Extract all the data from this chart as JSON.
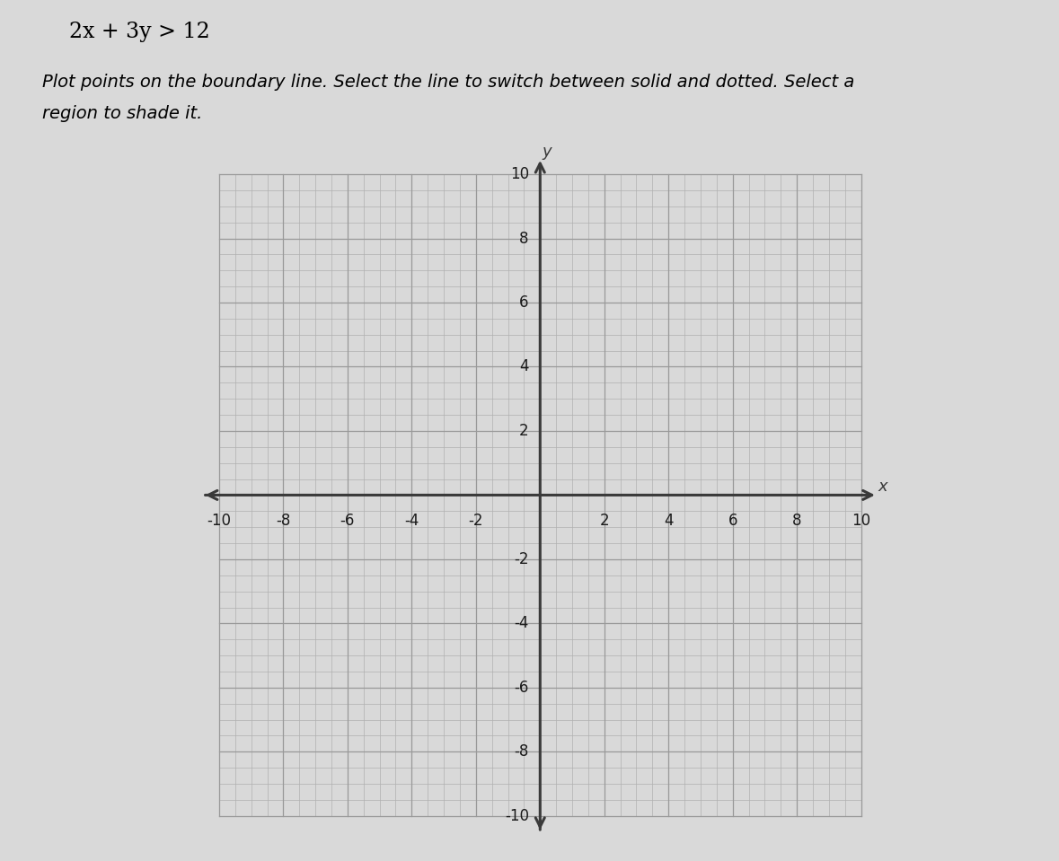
{
  "title": "2x + 3y > 12",
  "instruction_line1": "Plot points on the boundary line. Select the line to switch between solid and dotted. Select a",
  "instruction_line2": "region to shade it.",
  "xmin": -10,
  "xmax": 10,
  "ymin": -10,
  "ymax": 10,
  "major_tick_interval": 2,
  "minor_tick_interval": 0.5,
  "axis_label_x": "x",
  "axis_label_y": "y",
  "fig_bg_color": "#d9d9d9",
  "plot_bg_color": "#e0e0e0",
  "grid_color_minor": "#b0b0b0",
  "grid_color_major": "#999999",
  "axis_color": "#3a3a3a",
  "tick_label_color": "#1a1a1a",
  "title_color": "#000000",
  "instruction_color": "#000000",
  "title_fontsize": 17,
  "instruction_fontsize": 14,
  "tick_label_fontsize": 12,
  "axis_label_fontsize": 13,
  "grid_linewidth_minor": 0.5,
  "grid_linewidth_major": 0.9,
  "axis_linewidth": 2.2,
  "arrow_size": 18
}
